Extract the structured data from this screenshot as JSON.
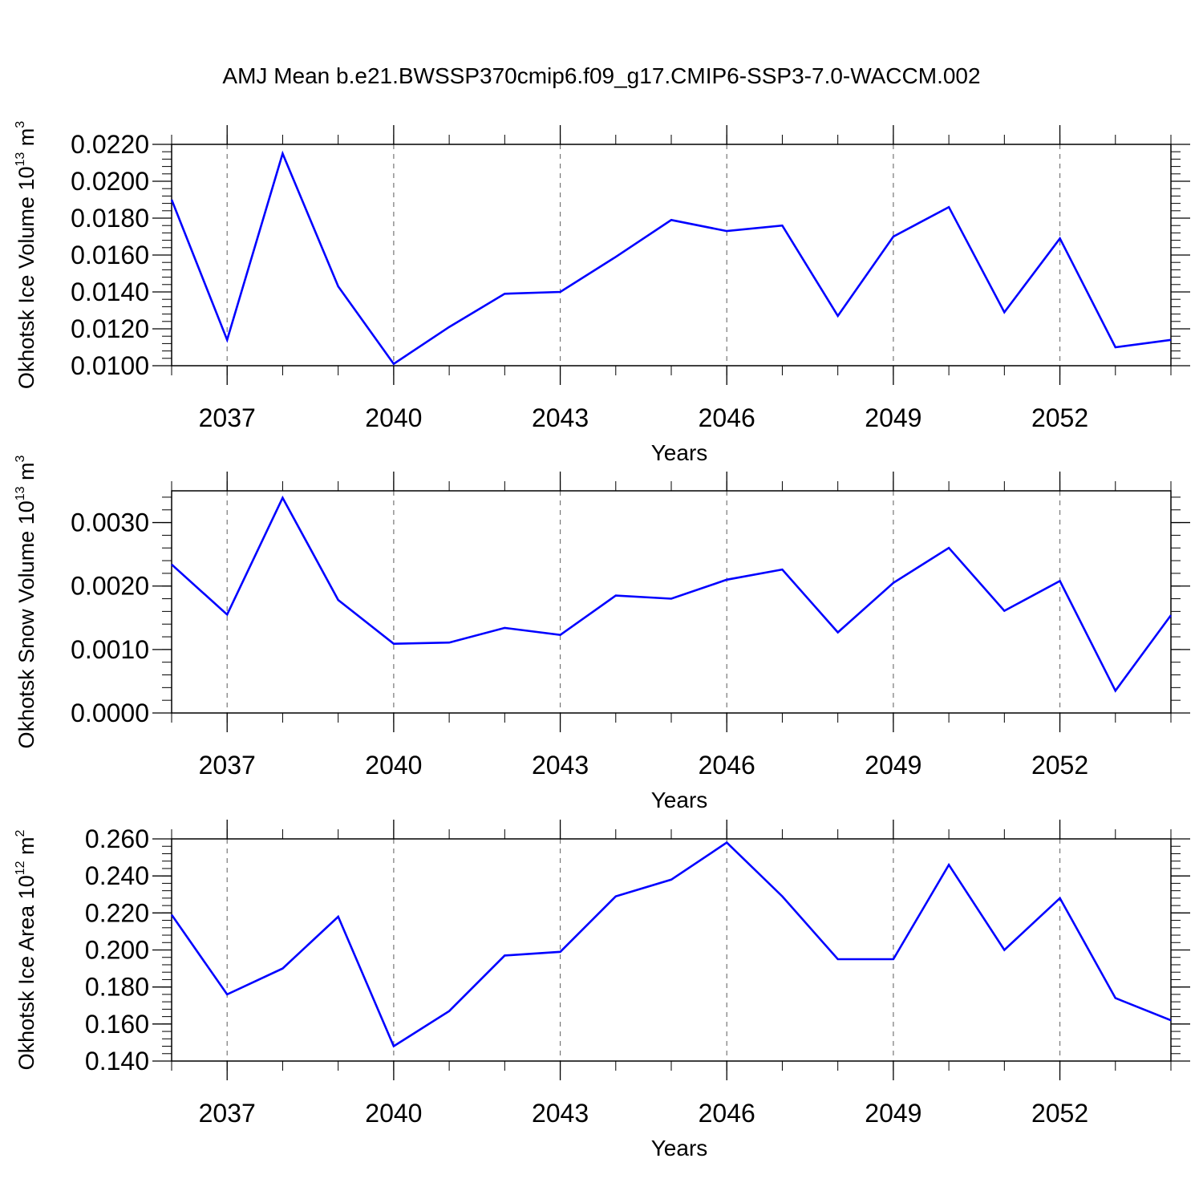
{
  "title": "AMJ Mean b.e21.BWSSP370cmip6.f09_g17.CMIP6-SSP3-7.0-WACCM.002",
  "line_color": "#0000ff",
  "chart_data": [
    {
      "type": "line",
      "ylabel": {
        "text": "Okhotsk Ice Volume 10",
        "exp": "13",
        "unit": " m",
        "unit_exp": "3"
      },
      "xlabel": "Years",
      "xlim": [
        2036,
        2054
      ],
      "ylim": [
        0.01,
        0.022
      ],
      "x_ticks": [
        2037,
        2040,
        2043,
        2046,
        2049,
        2052
      ],
      "x_tick_labels": [
        "2037",
        "2040",
        "2043",
        "2046",
        "2049",
        "2052"
      ],
      "y_ticks": [
        0.01,
        0.012,
        0.014,
        0.016,
        0.018,
        0.02,
        0.022
      ],
      "y_tick_labels": [
        "0.0100",
        "0.0120",
        "0.0140",
        "0.0160",
        "0.0180",
        "0.0200",
        "0.0220"
      ],
      "grid": "dashed vertical at major x ticks",
      "x": [
        2036,
        2037,
        2038,
        2039,
        2040,
        2041,
        2042,
        2043,
        2044,
        2045,
        2046,
        2047,
        2048,
        2049,
        2050,
        2051,
        2052,
        2053,
        2054
      ],
      "values": [
        0.019,
        0.0114,
        0.0215,
        0.0143,
        0.0101,
        0.0121,
        0.0139,
        0.014,
        0.0159,
        0.0179,
        0.0173,
        0.0176,
        0.0127,
        0.017,
        0.0186,
        0.0129,
        0.0169,
        0.011,
        0.0114
      ]
    },
    {
      "type": "line",
      "ylabel": {
        "text": "Okhotsk Snow Volume 10",
        "exp": "13",
        "unit": " m",
        "unit_exp": "3"
      },
      "xlabel": "Years",
      "xlim": [
        2036,
        2054
      ],
      "ylim": [
        0.0,
        0.0035
      ],
      "x_ticks": [
        2037,
        2040,
        2043,
        2046,
        2049,
        2052
      ],
      "x_tick_labels": [
        "2037",
        "2040",
        "2043",
        "2046",
        "2049",
        "2052"
      ],
      "y_ticks": [
        0.0,
        0.001,
        0.002,
        0.003
      ],
      "y_tick_labels": [
        "0.0000",
        "0.0010",
        "0.0020",
        "0.0030"
      ],
      "grid": "dashed vertical at major x ticks",
      "x": [
        2036,
        2037,
        2038,
        2039,
        2040,
        2041,
        2042,
        2043,
        2044,
        2045,
        2046,
        2047,
        2048,
        2049,
        2050,
        2051,
        2052,
        2053,
        2054
      ],
      "values": [
        0.00234,
        0.00155,
        0.00339,
        0.00178,
        0.00109,
        0.00111,
        0.00134,
        0.00123,
        0.00185,
        0.0018,
        0.0021,
        0.00226,
        0.00127,
        0.00205,
        0.0026,
        0.00161,
        0.00208,
        0.00035,
        0.00154
      ]
    },
    {
      "type": "line",
      "ylabel": {
        "text": "Okhotsk Ice Area 10",
        "exp": "12",
        "unit": " m",
        "unit_exp": "2"
      },
      "xlabel": "Years",
      "xlim": [
        2036,
        2054
      ],
      "ylim": [
        0.14,
        0.26
      ],
      "x_ticks": [
        2037,
        2040,
        2043,
        2046,
        2049,
        2052
      ],
      "x_tick_labels": [
        "2037",
        "2040",
        "2043",
        "2046",
        "2049",
        "2052"
      ],
      "y_ticks": [
        0.14,
        0.16,
        0.18,
        0.2,
        0.22,
        0.24,
        0.26
      ],
      "y_tick_labels": [
        "0.140",
        "0.160",
        "0.180",
        "0.200",
        "0.220",
        "0.240",
        "0.260"
      ],
      "grid": "dashed vertical at major x ticks",
      "x": [
        2036,
        2037,
        2038,
        2039,
        2040,
        2041,
        2042,
        2043,
        2044,
        2045,
        2046,
        2047,
        2048,
        2049,
        2050,
        2051,
        2052,
        2053,
        2054
      ],
      "values": [
        0.219,
        0.176,
        0.19,
        0.218,
        0.148,
        0.167,
        0.197,
        0.199,
        0.229,
        0.238,
        0.258,
        0.229,
        0.195,
        0.195,
        0.246,
        0.2,
        0.228,
        0.174,
        0.162
      ]
    }
  ]
}
